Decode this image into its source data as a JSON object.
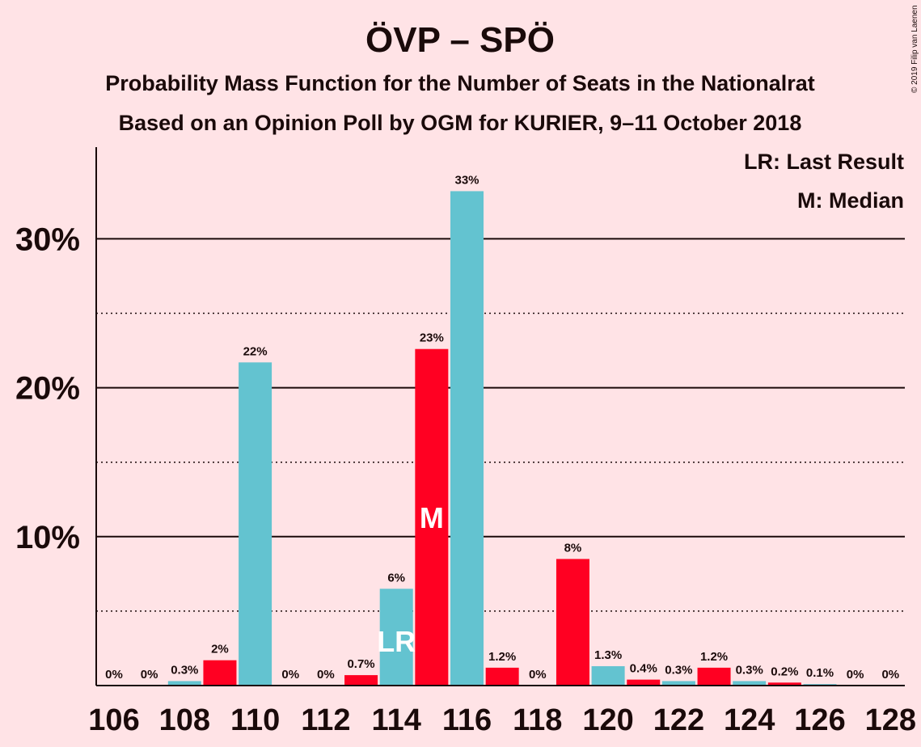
{
  "chart_data": {
    "type": "bar",
    "title": "ÖVP – SPÖ",
    "subtitle_1": "Probability Mass Function for the Number of Seats in the Nationalrat",
    "subtitle_2": "Based on an Opinion Poll by OGM for KURIER, 9–11 October 2018",
    "copyright": "© 2019 Filip van Laenen",
    "legend": [
      "LR: Last Result",
      "M: Median"
    ],
    "xlabel": "",
    "ylabel": "",
    "ylim": [
      0,
      36
    ],
    "grid": "solid major lines at 10%, 20%, 30%; dotted minor lines at 5%, 15%, 25%",
    "y_ticks": [
      {
        "value": 10,
        "label": "10%"
      },
      {
        "value": 20,
        "label": "20%"
      },
      {
        "value": 30,
        "label": "30%"
      }
    ],
    "minor_grid": [
      5,
      15,
      25
    ],
    "x_ticks": [
      {
        "value": 106,
        "label": "106"
      },
      {
        "value": 108,
        "label": "108"
      },
      {
        "value": 110,
        "label": "110"
      },
      {
        "value": 112,
        "label": "112"
      },
      {
        "value": 114,
        "label": "114"
      },
      {
        "value": 116,
        "label": "116"
      },
      {
        "value": 118,
        "label": "118"
      },
      {
        "value": 120,
        "label": "120"
      },
      {
        "value": 122,
        "label": "122"
      },
      {
        "value": 124,
        "label": "124"
      },
      {
        "value": 126,
        "label": "126"
      },
      {
        "value": 128,
        "label": "128"
      }
    ],
    "colors": {
      "cyan": "#63c3d0",
      "red": "#ff0022",
      "background": "#ffe3e6",
      "text": "#1a0a0a",
      "axis": "#1a0a0a"
    },
    "bars": [
      {
        "x": 106,
        "value": 0,
        "label": "0%",
        "color": "cyan"
      },
      {
        "x": 107,
        "value": 0,
        "label": "0%",
        "color": "red"
      },
      {
        "x": 108,
        "value": 0.3,
        "label": "0.3%",
        "color": "cyan"
      },
      {
        "x": 109,
        "value": 1.7,
        "label": "2%",
        "color": "red"
      },
      {
        "x": 110,
        "value": 21.7,
        "label": "22%",
        "color": "cyan"
      },
      {
        "x": 111,
        "value": 0,
        "label": "0%",
        "color": "red"
      },
      {
        "x": 112,
        "value": 0,
        "label": "0%",
        "color": "cyan"
      },
      {
        "x": 113,
        "value": 0.7,
        "label": "0.7%",
        "color": "red"
      },
      {
        "x": 114,
        "value": 6.5,
        "label": "6%",
        "color": "cyan",
        "mark": "LR"
      },
      {
        "x": 115,
        "value": 22.6,
        "label": "23%",
        "color": "red",
        "mark": "M"
      },
      {
        "x": 116,
        "value": 33.2,
        "label": "33%",
        "color": "cyan"
      },
      {
        "x": 117,
        "value": 1.2,
        "label": "1.2%",
        "color": "red"
      },
      {
        "x": 118,
        "value": 0,
        "label": "0%",
        "color": "cyan"
      },
      {
        "x": 119,
        "value": 8.5,
        "label": "8%",
        "color": "red"
      },
      {
        "x": 120,
        "value": 1.3,
        "label": "1.3%",
        "color": "cyan"
      },
      {
        "x": 121,
        "value": 0.4,
        "label": "0.4%",
        "color": "red"
      },
      {
        "x": 122,
        "value": 0.3,
        "label": "0.3%",
        "color": "cyan"
      },
      {
        "x": 123,
        "value": 1.2,
        "label": "1.2%",
        "color": "red"
      },
      {
        "x": 124,
        "value": 0.3,
        "label": "0.3%",
        "color": "cyan"
      },
      {
        "x": 125,
        "value": 0.2,
        "label": "0.2%",
        "color": "red"
      },
      {
        "x": 126,
        "value": 0.1,
        "label": "0.1%",
        "color": "cyan"
      },
      {
        "x": 127,
        "value": 0,
        "label": "0%",
        "color": "red"
      },
      {
        "x": 128,
        "value": 0,
        "label": "0%",
        "color": "cyan"
      }
    ]
  }
}
